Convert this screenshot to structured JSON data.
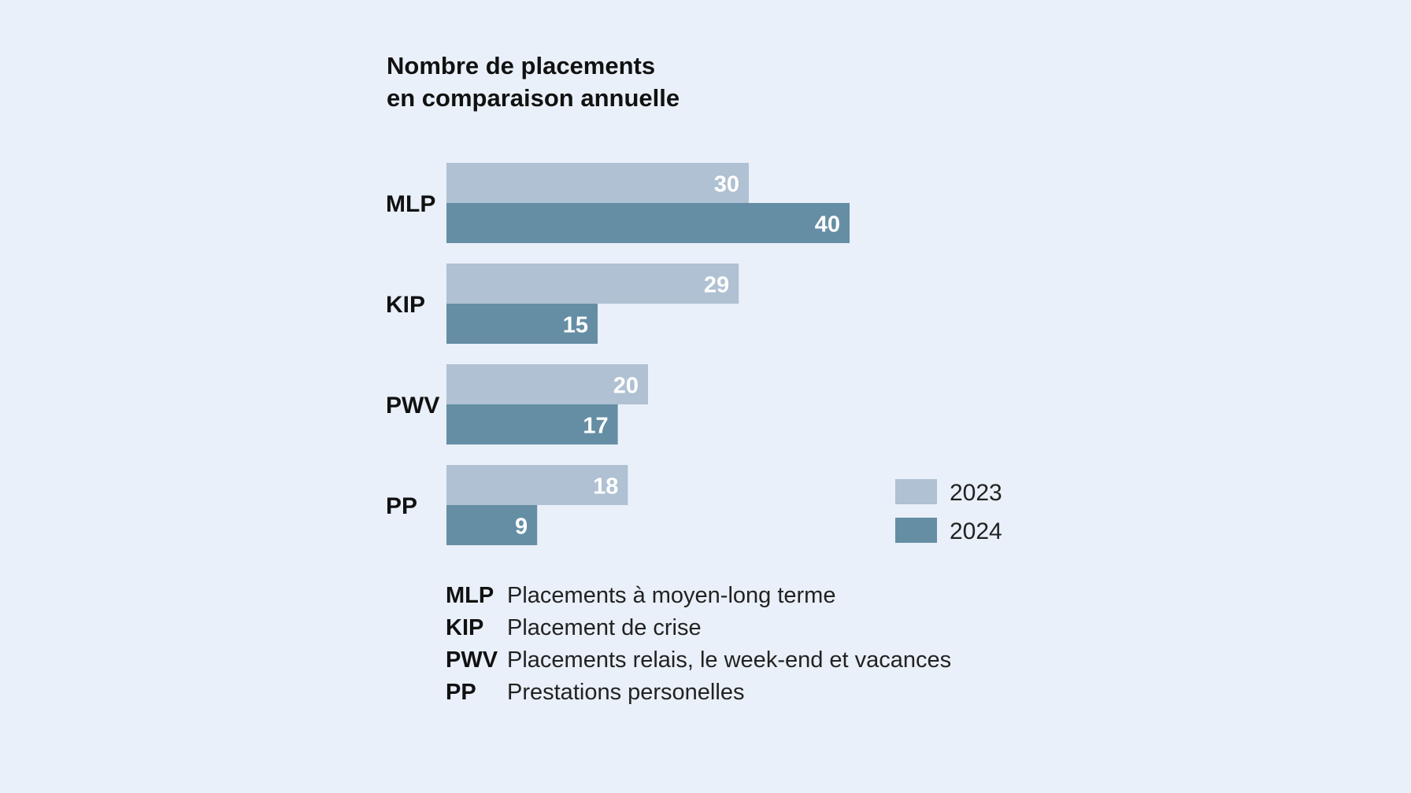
{
  "chart_data": {
    "type": "bar",
    "orientation": "horizontal",
    "title": [
      "Nombre de placements",
      "en comparaison annuelle"
    ],
    "categories": [
      "MLP",
      "KIP",
      "PWV",
      "PP"
    ],
    "series": [
      {
        "name": "2023",
        "values": [
          30,
          29,
          20,
          18
        ],
        "color": "#afc1d2"
      },
      {
        "name": "2024",
        "values": [
          40,
          15,
          17,
          9
        ],
        "color": "#658ea4"
      }
    ],
    "xlim": [
      0,
      40
    ],
    "grid": false,
    "legend_position": "bottom-right",
    "abbreviations": [
      {
        "code": "MLP",
        "description": "Placements à moyen-long terme"
      },
      {
        "code": "KIP",
        "description": "Placement de crise"
      },
      {
        "code": "PWV",
        "description": "Placements relais, le week-end et vacances"
      },
      {
        "code": "PP",
        "description": "Prestations personelles"
      }
    ]
  }
}
